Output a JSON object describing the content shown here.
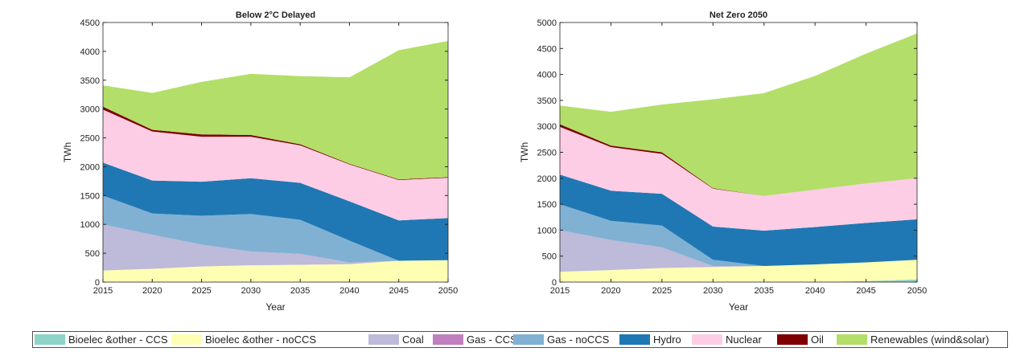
{
  "chart_data": [
    {
      "type": "stacked-area",
      "title": "Below 2°C Delayed",
      "x_label": "Year",
      "y_label": "TWh",
      "x": [
        2015,
        2020,
        2025,
        2030,
        2035,
        2040,
        2045,
        2050
      ],
      "xlim": [
        2015,
        2050
      ],
      "xticks": [
        2015,
        2020,
        2025,
        2030,
        2035,
        2040,
        2045,
        2050
      ],
      "ylim": [
        0,
        4500
      ],
      "yticks": [
        0,
        500,
        1000,
        1500,
        2000,
        2500,
        3000,
        3500,
        4000,
        4500
      ],
      "series": [
        {
          "values": [
            0,
            0,
            0,
            0,
            0,
            0,
            0,
            0
          ]
        },
        {
          "values": [
            200,
            230,
            270,
            290,
            300,
            310,
            370,
            380
          ]
        },
        {
          "values": [
            800,
            590,
            380,
            240,
            190,
            30,
            0,
            0
          ]
        },
        {
          "values": [
            0,
            0,
            0,
            0,
            0,
            0,
            0,
            0
          ]
        },
        {
          "values": [
            500,
            370,
            500,
            650,
            590,
            380,
            0,
            0
          ]
        },
        {
          "values": [
            570,
            570,
            590,
            620,
            640,
            680,
            700,
            730
          ]
        },
        {
          "values": [
            920,
            850,
            780,
            720,
            650,
            640,
            700,
            700
          ]
        },
        {
          "values": [
            50,
            30,
            40,
            30,
            20,
            10,
            10,
            10
          ]
        },
        {
          "values": [
            370,
            640,
            910,
            1060,
            1180,
            1500,
            2240,
            2360
          ]
        }
      ]
    },
    {
      "type": "stacked-area",
      "title": "Net Zero 2050",
      "x_label": "Year",
      "y_label": "TWh",
      "x": [
        2015,
        2020,
        2025,
        2030,
        2035,
        2040,
        2045,
        2050
      ],
      "xlim": [
        2015,
        2050
      ],
      "xticks": [
        2015,
        2020,
        2025,
        2030,
        2035,
        2040,
        2045,
        2050
      ],
      "ylim": [
        0,
        5000
      ],
      "yticks": [
        0,
        500,
        1000,
        1500,
        2000,
        2500,
        3000,
        3500,
        4000,
        4500,
        5000
      ],
      "series": [
        {
          "values": [
            0,
            0,
            0,
            0,
            0,
            0,
            20,
            50
          ]
        },
        {
          "values": [
            200,
            230,
            270,
            290,
            310,
            340,
            360,
            380
          ]
        },
        {
          "values": [
            800,
            580,
            400,
            20,
            0,
            0,
            0,
            0
          ]
        },
        {
          "values": [
            0,
            0,
            0,
            0,
            0,
            0,
            0,
            0
          ]
        },
        {
          "values": [
            500,
            370,
            420,
            120,
            0,
            0,
            0,
            0
          ]
        },
        {
          "values": [
            570,
            580,
            610,
            640,
            680,
            720,
            760,
            780
          ]
        },
        {
          "values": [
            920,
            840,
            770,
            730,
            670,
            720,
            760,
            790
          ]
        },
        {
          "values": [
            50,
            30,
            30,
            10,
            0,
            0,
            0,
            0
          ]
        },
        {
          "values": [
            360,
            650,
            920,
            1710,
            1980,
            2190,
            2500,
            2790
          ]
        }
      ]
    }
  ],
  "legend": {
    "entries": [
      {
        "name": "Bioelec &other  - CCS",
        "color": "#8dd3c7"
      },
      {
        "name": "Bioelec &other  - noCCS",
        "color": "#ffffb3"
      },
      {
        "name": "Coal",
        "color": "#bebada"
      },
      {
        "name": "Gas  - CCS",
        "color": "#c080c0"
      },
      {
        "name": "Gas - noCCS",
        "color": "#80b1d3"
      },
      {
        "name": "Hydro",
        "color": "#1f78b4"
      },
      {
        "name": "Nuclear",
        "color": "#fccde5"
      },
      {
        "name": "Oil",
        "color": "#800000"
      },
      {
        "name": "Renewables (wind&solar)",
        "color": "#b3de69"
      }
    ]
  }
}
